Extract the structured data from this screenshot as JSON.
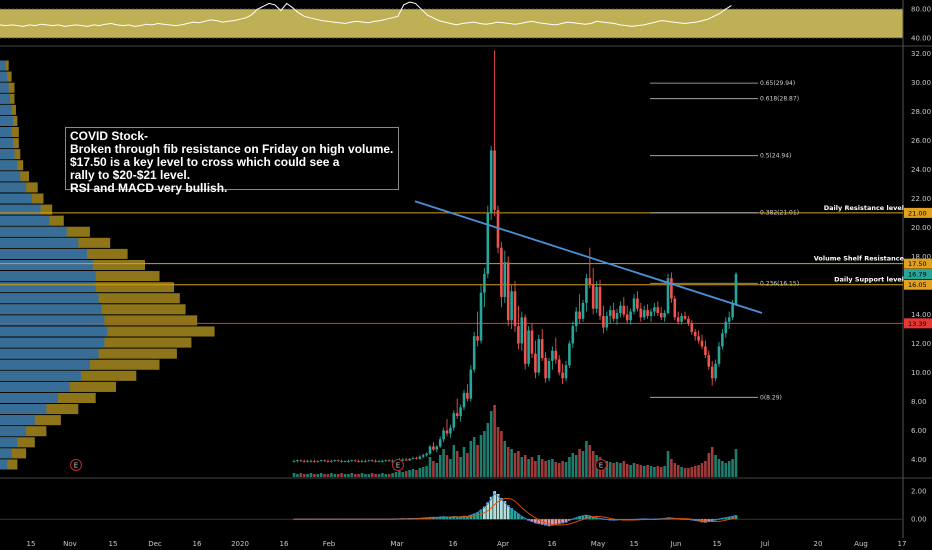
{
  "note": {
    "lines": [
      "COVID Stock-",
      "Broken through fib resistance on Friday on high volume.",
      "$17.50 is a key level to cross which could see a",
      "rally to $20-$21 level.",
      "RSI and MACD very bullish."
    ]
  },
  "chart_data": [
    {
      "type": "line",
      "panel": "rsi",
      "ylim": [
        30,
        90
      ],
      "y_ticks": [
        "80.00",
        "40.00"
      ],
      "band": [
        40,
        80
      ],
      "values": [
        58,
        57,
        58,
        57,
        56,
        58,
        57,
        59,
        58,
        57,
        58,
        56,
        57,
        58,
        57,
        56,
        58,
        57,
        59,
        60,
        58,
        57,
        58,
        56,
        57,
        59,
        58,
        60,
        59,
        58,
        57,
        58,
        60,
        62,
        61,
        63,
        65,
        64,
        62,
        63,
        64,
        66,
        68,
        72,
        80,
        84,
        88,
        86,
        78,
        88,
        82,
        75,
        70,
        68,
        66,
        64,
        63,
        62,
        61,
        60,
        62,
        63,
        62,
        61,
        63,
        64,
        66,
        68,
        70,
        86,
        90,
        88,
        80,
        72,
        68,
        64,
        62,
        60,
        58,
        60,
        61,
        62,
        60,
        59,
        60,
        62,
        61,
        60,
        59,
        60,
        62,
        63,
        61,
        60,
        59,
        58,
        60,
        62,
        61,
        60,
        59,
        60,
        63,
        62,
        61,
        60,
        58,
        57,
        56,
        57,
        58,
        60,
        62,
        64,
        63,
        62,
        61,
        60,
        61,
        62,
        64,
        66,
        70,
        74,
        80,
        85
      ]
    },
    {
      "type": "candlestick",
      "panel": "price",
      "ylim": [
        2.8,
        32.5
      ],
      "y_ticks": [
        "32.00",
        "30.00",
        "28.00",
        "26.00",
        "24.00",
        "22.00",
        "20.00",
        "18.00",
        "16.00",
        "14.00",
        "12.00",
        "10.00",
        "8.00",
        "6.00",
        "4.00"
      ],
      "x_ticks": [
        "15",
        "Nov",
        "15",
        "Dec",
        "16",
        "2020",
        "16",
        "Feb",
        "Mar",
        "16",
        "Apr",
        "16",
        "May",
        "15",
        "Jun",
        "15",
        "Jul",
        "20",
        "Aug",
        "17"
      ],
      "price_tags": [
        {
          "label": "21.00",
          "value": 21.0,
          "color": "#e0a020"
        },
        {
          "label": "17.50",
          "value": 17.5,
          "color": "#e0a020"
        },
        {
          "label": "16.79",
          "value": 16.79,
          "color": "#26a69a"
        },
        {
          "label": "16.05",
          "value": 16.05,
          "color": "#e0a020"
        },
        {
          "label": "13.39",
          "value": 13.39,
          "color": "#e53935"
        }
      ],
      "horizontal_levels": [
        {
          "label": "Daily Resistance level",
          "value": 21.0,
          "color": "#d4a017"
        },
        {
          "label": "Volume Shelf Resistance",
          "value": 17.5,
          "color": "#d4a017"
        },
        {
          "label": "Daily Support level",
          "value": 16.05,
          "color": "#d4a017"
        },
        {
          "label": "",
          "value": 13.39,
          "color": "#e53935"
        }
      ],
      "fib_levels": [
        {
          "label": "0.65(29.94)",
          "value": 29.94
        },
        {
          "label": "0.618(28.87)",
          "value": 28.87
        },
        {
          "label": "0.5(24.94)",
          "value": 24.94
        },
        {
          "label": "0.382(21.01)",
          "value": 21.01
        },
        {
          "label": "0.236(16.15)",
          "value": 16.15
        },
        {
          "label": "0(8.29)",
          "value": 8.29
        }
      ],
      "trendline": {
        "from": 21.8,
        "to": 14.1,
        "color": "#4a90d9"
      },
      "event_markers": [
        "E",
        "E",
        "E"
      ],
      "candles": [
        [
          3.9,
          4.0,
          3.8,
          3.9
        ],
        [
          3.9,
          4.0,
          3.8,
          3.95
        ],
        [
          3.95,
          4.0,
          3.85,
          3.9
        ],
        [
          3.9,
          4.0,
          3.8,
          3.85
        ],
        [
          3.85,
          4.0,
          3.8,
          3.9
        ],
        [
          3.9,
          4.0,
          3.8,
          3.9
        ],
        [
          3.9,
          4.0,
          3.8,
          3.85
        ],
        [
          3.85,
          3.95,
          3.8,
          3.9
        ],
        [
          3.9,
          4.0,
          3.85,
          3.95
        ],
        [
          3.95,
          4.0,
          3.85,
          3.9
        ],
        [
          3.9,
          4.0,
          3.8,
          3.85
        ],
        [
          3.85,
          4.0,
          3.8,
          3.9
        ],
        [
          3.9,
          4.0,
          3.85,
          3.95
        ],
        [
          3.95,
          4.0,
          3.85,
          3.9
        ],
        [
          3.9,
          4.0,
          3.8,
          3.85
        ],
        [
          3.85,
          3.95,
          3.8,
          3.9
        ],
        [
          3.9,
          4.0,
          3.8,
          3.9
        ],
        [
          3.9,
          4.0,
          3.85,
          3.95
        ],
        [
          3.95,
          4.0,
          3.85,
          3.9
        ],
        [
          3.9,
          4.0,
          3.8,
          3.85
        ],
        [
          3.85,
          4.0,
          3.8,
          3.9
        ],
        [
          3.9,
          4.0,
          3.8,
          3.9
        ],
        [
          3.9,
          4.0,
          3.85,
          3.95
        ],
        [
          3.95,
          4.0,
          3.85,
          3.9
        ],
        [
          3.9,
          4.0,
          3.8,
          3.85
        ],
        [
          3.85,
          3.95,
          3.8,
          3.9
        ],
        [
          3.9,
          4.0,
          3.8,
          3.9
        ],
        [
          3.9,
          4.0,
          3.85,
          3.95
        ],
        [
          3.95,
          4.0,
          3.85,
          3.9
        ],
        [
          3.9,
          4.0,
          3.8,
          3.9
        ],
        [
          3.9,
          4.0,
          3.85,
          3.95
        ],
        [
          3.95,
          4.1,
          3.9,
          4.0
        ],
        [
          4.0,
          4.1,
          3.9,
          4.0
        ],
        [
          4.0,
          4.1,
          3.9,
          3.95
        ],
        [
          3.95,
          4.1,
          3.9,
          4.05
        ],
        [
          4.05,
          4.2,
          4.0,
          4.1
        ],
        [
          4.1,
          4.2,
          4.0,
          4.05
        ],
        [
          4.05,
          4.3,
          4.0,
          4.2
        ],
        [
          4.2,
          4.4,
          4.1,
          4.3
        ],
        [
          4.3,
          4.5,
          4.2,
          4.4
        ],
        [
          4.4,
          5.0,
          4.3,
          4.9
        ],
        [
          4.9,
          5.2,
          4.6,
          4.7
        ],
        [
          4.7,
          5.0,
          4.5,
          4.9
        ],
        [
          4.9,
          5.6,
          4.8,
          5.4
        ],
        [
          5.4,
          6.2,
          5.2,
          6.0
        ],
        [
          6.0,
          6.8,
          5.6,
          5.8
        ],
        [
          5.8,
          6.4,
          5.5,
          6.2
        ],
        [
          6.2,
          7.4,
          6.0,
          7.2
        ],
        [
          7.2,
          8.2,
          6.8,
          7.0
        ],
        [
          7.0,
          7.8,
          6.6,
          7.6
        ],
        [
          7.6,
          8.8,
          7.4,
          8.6
        ],
        [
          8.6,
          9.2,
          8.0,
          8.2
        ],
        [
          8.2,
          10.5,
          8.0,
          10.2
        ],
        [
          10.2,
          12.8,
          10.0,
          12.5
        ],
        [
          12.5,
          14.2,
          11.8,
          12.2
        ],
        [
          12.2,
          16.0,
          12.0,
          15.5
        ],
        [
          15.5,
          17.2,
          14.5,
          16.8
        ],
        [
          16.8,
          21.5,
          16.5,
          21.0
        ],
        [
          21.0,
          25.6,
          20.5,
          25.3
        ],
        [
          25.3,
          32.2,
          20.8,
          21.2
        ],
        [
          21.2,
          21.5,
          18.2,
          18.6
        ],
        [
          18.6,
          19.0,
          14.5,
          15.2
        ],
        [
          15.2,
          18.4,
          14.8,
          17.6
        ],
        [
          17.6,
          18.0,
          13.2,
          13.6
        ],
        [
          13.6,
          16.0,
          13.0,
          15.6
        ],
        [
          15.6,
          16.3,
          12.8,
          13.2
        ],
        [
          13.2,
          14.6,
          11.6,
          12.0
        ],
        [
          12.0,
          14.2,
          11.5,
          13.8
        ],
        [
          13.8,
          14.0,
          10.2,
          10.6
        ],
        [
          10.6,
          13.2,
          10.4,
          12.9
        ],
        [
          12.9,
          13.4,
          11.0,
          11.3
        ],
        [
          11.3,
          12.2,
          9.6,
          10.0
        ],
        [
          10.0,
          12.6,
          9.8,
          12.3
        ],
        [
          12.3,
          13.0,
          10.8,
          11.0
        ],
        [
          11.0,
          11.4,
          9.3,
          9.6
        ],
        [
          9.6,
          11.0,
          9.4,
          10.8
        ],
        [
          10.8,
          11.8,
          10.2,
          11.5
        ],
        [
          11.5,
          12.4,
          10.6,
          10.9
        ],
        [
          10.9,
          11.2,
          9.8,
          10.0
        ],
        [
          10.0,
          10.6,
          9.2,
          9.6
        ],
        [
          9.6,
          10.8,
          9.4,
          10.5
        ],
        [
          10.5,
          12.2,
          10.3,
          12.0
        ],
        [
          12.0,
          13.5,
          11.7,
          13.2
        ],
        [
          13.2,
          14.5,
          12.8,
          14.2
        ],
        [
          14.2,
          15.4,
          13.4,
          13.7
        ],
        [
          13.7,
          15.0,
          13.5,
          14.8
        ],
        [
          14.8,
          16.8,
          14.2,
          16.5
        ],
        [
          16.5,
          18.6,
          15.8,
          16.1
        ],
        [
          16.1,
          17.2,
          14.0,
          14.4
        ],
        [
          14.4,
          16.3,
          14.1,
          15.9
        ],
        [
          15.9,
          16.4,
          13.6,
          13.9
        ],
        [
          13.9,
          14.6,
          12.7,
          13.1
        ],
        [
          13.1,
          14.2,
          12.9,
          13.9
        ],
        [
          13.9,
          14.6,
          13.4,
          14.3
        ],
        [
          14.3,
          14.8,
          13.5,
          13.7
        ],
        [
          13.7,
          14.4,
          13.3,
          14.1
        ],
        [
          14.1,
          14.9,
          13.8,
          14.6
        ],
        [
          14.6,
          15.2,
          13.8,
          14.0
        ],
        [
          14.0,
          14.6,
          13.4,
          13.6
        ],
        [
          13.6,
          14.4,
          13.3,
          14.2
        ],
        [
          14.2,
          15.4,
          14.0,
          15.1
        ],
        [
          15.1,
          15.6,
          14.2,
          14.4
        ],
        [
          14.4,
          14.8,
          13.5,
          13.8
        ],
        [
          13.8,
          14.6,
          13.6,
          14.3
        ],
        [
          14.3,
          14.7,
          13.7,
          13.9
        ],
        [
          13.9,
          14.4,
          13.5,
          14.2
        ],
        [
          14.2,
          14.8,
          13.9,
          14.5
        ],
        [
          14.5,
          14.9,
          13.9,
          14.1
        ],
        [
          14.1,
          14.5,
          13.6,
          13.8
        ],
        [
          13.8,
          14.3,
          13.5,
          14.1
        ],
        [
          14.1,
          16.8,
          14.0,
          16.5
        ],
        [
          16.5,
          16.9,
          14.8,
          15.1
        ],
        [
          15.1,
          15.3,
          13.6,
          13.8
        ],
        [
          13.8,
          14.2,
          13.3,
          13.5
        ],
        [
          13.5,
          14.1,
          13.3,
          13.9
        ],
        [
          13.9,
          14.2,
          13.6,
          13.7
        ],
        [
          13.7,
          13.9,
          13.2,
          13.4
        ],
        [
          13.4,
          13.6,
          12.6,
          12.8
        ],
        [
          12.8,
          13.0,
          12.2,
          12.5
        ],
        [
          12.5,
          12.9,
          12.0,
          12.2
        ],
        [
          12.2,
          12.6,
          11.6,
          11.8
        ],
        [
          11.8,
          12.2,
          11.0,
          11.2
        ],
        [
          11.2,
          11.5,
          10.2,
          10.4
        ],
        [
          10.4,
          10.8,
          9.1,
          9.6
        ],
        [
          9.6,
          10.9,
          9.4,
          10.6
        ],
        [
          10.6,
          12.1,
          10.4,
          11.8
        ],
        [
          11.8,
          13.0,
          11.6,
          12.7
        ],
        [
          12.7,
          13.8,
          12.4,
          13.5
        ],
        [
          13.5,
          14.2,
          13.0,
          13.8
        ],
        [
          13.8,
          15.0,
          13.6,
          14.7
        ],
        [
          14.7,
          16.9,
          14.6,
          16.79
        ]
      ],
      "volume": [
        0.4,
        0.3,
        0.4,
        0.3,
        0.3,
        0.4,
        0.3,
        0.3,
        0.4,
        0.3,
        0.3,
        0.4,
        0.3,
        0.3,
        0.4,
        0.3,
        0.3,
        0.4,
        0.3,
        0.3,
        0.4,
        0.3,
        0.3,
        0.4,
        0.3,
        0.3,
        0.4,
        0.3,
        0.3,
        0.4,
        0.5,
        0.6,
        0.5,
        0.6,
        0.7,
        0.8,
        0.7,
        0.9,
        1.0,
        1.1,
        2.0,
        1.6,
        1.4,
        2.2,
        2.8,
        2.2,
        1.8,
        3.2,
        2.6,
        2.0,
        3.0,
        2.4,
        3.6,
        4.0,
        3.2,
        4.2,
        4.6,
        5.4,
        6.6,
        7.2,
        5.0,
        4.6,
        3.6,
        3.0,
        2.8,
        2.4,
        2.6,
        2.0,
        2.2,
        1.8,
        2.0,
        1.6,
        2.2,
        1.8,
        1.6,
        1.7,
        1.8,
        1.5,
        1.4,
        1.6,
        1.5,
        2.0,
        2.4,
        2.2,
        2.8,
        2.6,
        3.6,
        3.2,
        2.6,
        2.2,
        2.0,
        1.7,
        1.6,
        1.5,
        1.4,
        1.5,
        1.4,
        1.6,
        1.3,
        1.2,
        1.4,
        1.3,
        1.2,
        1.1,
        1.2,
        1.1,
        1.0,
        1.1,
        1.0,
        1.1,
        2.6,
        1.8,
        1.4,
        1.2,
        1.0,
        0.9,
        0.9,
        1.0,
        1.1,
        1.2,
        1.4,
        1.6,
        2.4,
        3.0,
        2.2,
        1.8,
        1.6,
        1.4,
        1.6,
        1.8,
        2.8
      ]
    },
    {
      "type": "histogram",
      "panel": "macd",
      "ylim": [
        -1.2,
        2.8
      ],
      "y_ticks": [
        "2.00",
        "0.00"
      ],
      "values": [
        0,
        0,
        0,
        0,
        0,
        0,
        0,
        0,
        0,
        0,
        0,
        0,
        0,
        0,
        0,
        0,
        0,
        0,
        0,
        0,
        0,
        0,
        0,
        0,
        0,
        0,
        0,
        0,
        0,
        0,
        0.01,
        0.02,
        0.03,
        0.02,
        0.03,
        0.04,
        0.05,
        0.06,
        0.08,
        0.1,
        0.12,
        0.14,
        0.13,
        0.15,
        0.18,
        0.16,
        0.15,
        0.2,
        0.18,
        0.17,
        0.22,
        0.2,
        0.3,
        0.4,
        0.5,
        0.7,
        0.9,
        1.2,
        1.6,
        2.0,
        1.8,
        1.5,
        1.3,
        1.0,
        0.8,
        0.6,
        0.4,
        0.2,
        0.05,
        -0.1,
        -0.2,
        -0.3,
        -0.35,
        -0.4,
        -0.45,
        -0.5,
        -0.45,
        -0.4,
        -0.35,
        -0.3,
        -0.25,
        -0.1,
        0.0,
        0.1,
        0.2,
        0.25,
        0.3,
        0.25,
        0.15,
        0.1,
        0.05,
        0.0,
        -0.05,
        -0.08,
        -0.1,
        -0.08,
        -0.05,
        -0.05,
        -0.06,
        -0.05,
        -0.03,
        -0.02,
        0.0,
        0.01,
        0.0,
        -0.02,
        -0.01,
        0.0,
        0.02,
        0.03,
        0.1,
        0.08,
        0.05,
        0.02,
        0.0,
        -0.02,
        -0.04,
        -0.08,
        -0.12,
        -0.16,
        -0.22,
        -0.25,
        -0.2,
        -0.15,
        -0.08,
        0.0,
        0.06,
        0.1,
        0.15,
        0.2,
        0.28
      ]
    }
  ]
}
